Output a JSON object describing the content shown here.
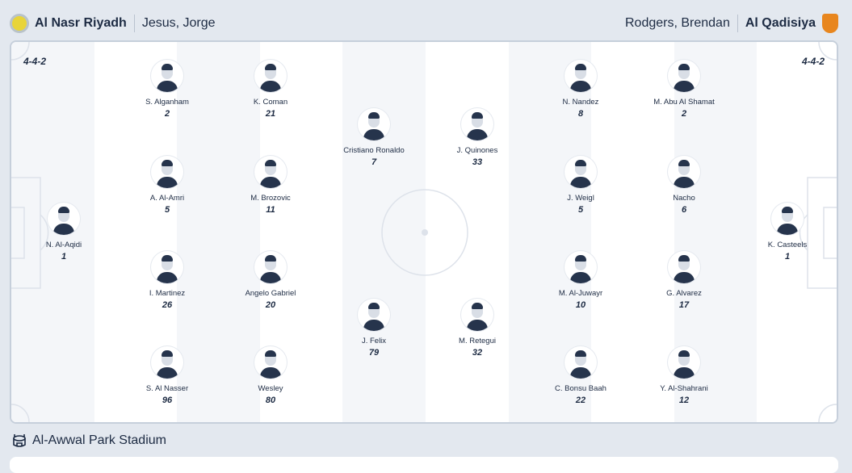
{
  "home": {
    "team": "Al Nasr Riyadh",
    "coach": "Jesus, Jorge",
    "formation": "4-4-2",
    "crest_color": "#e8d43a",
    "players": [
      {
        "name": "N. Al-Aqidi",
        "number": "1",
        "col": 0,
        "row": "gk"
      },
      {
        "name": "S. Alganham",
        "number": "2",
        "col": 1,
        "row": 0
      },
      {
        "name": "A. Al-Amri",
        "number": "5",
        "col": 1,
        "row": 1
      },
      {
        "name": "I. Martinez",
        "number": "26",
        "col": 1,
        "row": 2
      },
      {
        "name": "S. Al Nasser",
        "number": "96",
        "col": 1,
        "row": 3
      },
      {
        "name": "K. Coman",
        "number": "21",
        "col": 2,
        "row": 0
      },
      {
        "name": "M. Brozovic",
        "number": "11",
        "col": 2,
        "row": 1
      },
      {
        "name": "Angelo Gabriel",
        "number": "20",
        "col": 2,
        "row": 2
      },
      {
        "name": "Wesley",
        "number": "80",
        "col": 2,
        "row": 3
      },
      {
        "name": "Cristiano Ronaldo",
        "number": "7",
        "col": 3,
        "row": "f0"
      },
      {
        "name": "J. Felix",
        "number": "79",
        "col": 3,
        "row": "f1"
      }
    ]
  },
  "away": {
    "team": "Al Qadisiya",
    "coach": "Rodgers, Brendan",
    "formation": "4-4-2",
    "crest_color": "#e8861e",
    "players": [
      {
        "name": "J. Quinones",
        "number": "33",
        "col": 4,
        "row": "f0"
      },
      {
        "name": "M. Retegui",
        "number": "32",
        "col": 4,
        "row": "f1"
      },
      {
        "name": "N. Nandez",
        "number": "8",
        "col": 5,
        "row": 0
      },
      {
        "name": "J. Weigl",
        "number": "5",
        "col": 5,
        "row": 1
      },
      {
        "name": "M. Al-Juwayr",
        "number": "10",
        "col": 5,
        "row": 2
      },
      {
        "name": "C. Bonsu Baah",
        "number": "22",
        "col": 5,
        "row": 3
      },
      {
        "name": "M. Abu Al Shamat",
        "number": "2",
        "col": 6,
        "row": 0
      },
      {
        "name": "Nacho",
        "number": "6",
        "col": 6,
        "row": 1
      },
      {
        "name": "G. Alvarez",
        "number": "17",
        "col": 6,
        "row": 2
      },
      {
        "name": "Y. Al-Shahrani",
        "number": "12",
        "col": 6,
        "row": 3
      },
      {
        "name": "K. Casteels",
        "number": "1",
        "col": 7,
        "row": "gk"
      }
    ]
  },
  "venue": {
    "name": "Al-Awwal Park Stadium",
    "icon": "stadium-icon"
  }
}
